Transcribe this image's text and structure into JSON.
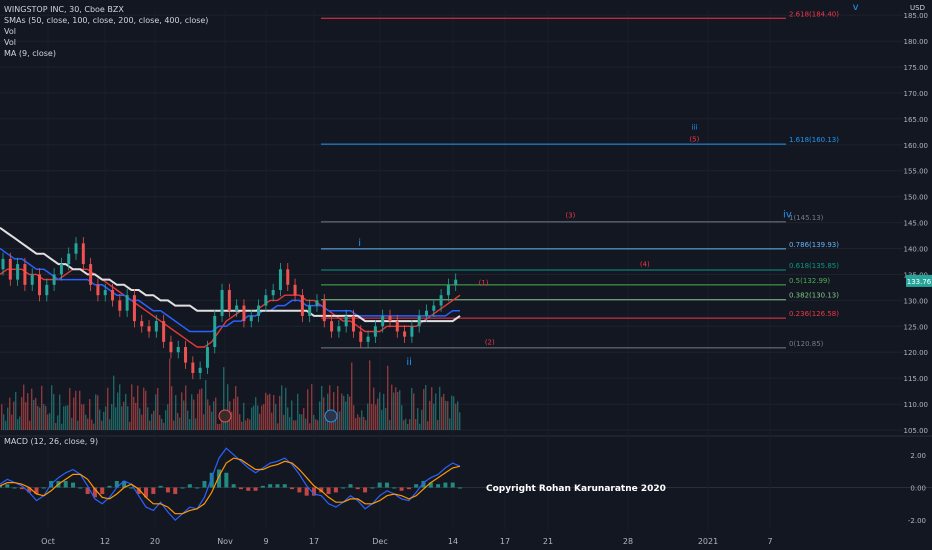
{
  "header": {
    "symbol_line": "WINGSTOP INC, 30, Cboe BZX",
    "indicators": [
      "SMAs (50, close, 100, close, 200, close, 400, close)",
      "Vol",
      "Vol",
      "MA (9, close)"
    ],
    "macd_label": "MACD (12, 26, close, 9)",
    "currency": "USD"
  },
  "copyright": "Copyright Rohan Karunaratne 2020",
  "chart_data": {
    "type": "line",
    "x_tick_labels": [
      "Oct",
      "12",
      "20",
      "Nov",
      "9",
      "17",
      "Dec",
      "14",
      "17",
      "21",
      "28",
      "2021",
      "7"
    ],
    "price_axis": {
      "ylim": [
        105,
        186
      ],
      "ticks": [
        105.0,
        110.0,
        115.0,
        120.0,
        125.0,
        130.0,
        135.0,
        140.0,
        145.0,
        150.0,
        155.0,
        160.0,
        165.0,
        170.0,
        175.0,
        180.0,
        185.0
      ],
      "last_price": "133.76"
    },
    "macd_axis": {
      "ylim": [
        -2.6,
        2.6
      ],
      "ticks": [
        2.0,
        0.0,
        -2.0
      ]
    },
    "price_series": [
      {
        "name": "price",
        "values": [
          136,
          138,
          134,
          137,
          133,
          135,
          131,
          133,
          135,
          137,
          139,
          141,
          137,
          133,
          131,
          132,
          130,
          128,
          131,
          126,
          125,
          124,
          126,
          122,
          120,
          121,
          118,
          116,
          117,
          121,
          127,
          132,
          128,
          129,
          126,
          127,
          129,
          131,
          132,
          136,
          133,
          131,
          127,
          129,
          130,
          126,
          124,
          125,
          127,
          124,
          122,
          123,
          125,
          127,
          126,
          124,
          123,
          125,
          127,
          128,
          129,
          131,
          133,
          134
        ]
      },
      {
        "name": "sma-1",
        "values": [
          135,
          136,
          136,
          136,
          135,
          135,
          134,
          134,
          134,
          135,
          136,
          136,
          136,
          135,
          134,
          133,
          132,
          131,
          130,
          129,
          128,
          127,
          126,
          125,
          124,
          123,
          122,
          121,
          121,
          122,
          124,
          126,
          127,
          128,
          128,
          128,
          129,
          130,
          130,
          131,
          131,
          131,
          130,
          130,
          129,
          128,
          127,
          126,
          126,
          125,
          124,
          124,
          124,
          125,
          125,
          125,
          125,
          125,
          126,
          127,
          128,
          129,
          130,
          131
        ]
      },
      {
        "name": "sma-2",
        "values": [
          140,
          139,
          138,
          138,
          137,
          136,
          136,
          135,
          134,
          134,
          134,
          134,
          134,
          133,
          133,
          132,
          131,
          131,
          130,
          130,
          129,
          128,
          128,
          127,
          126,
          125,
          124,
          124,
          124,
          124,
          125,
          125,
          126,
          126,
          127,
          127,
          128,
          128,
          129,
          129,
          130,
          130,
          129,
          129,
          129,
          128,
          128,
          128,
          128,
          127,
          127,
          127,
          127,
          127,
          127,
          127,
          127,
          127,
          127,
          127,
          127,
          127,
          128,
          128
        ]
      },
      {
        "name": "sma-3",
        "values": [
          144,
          143,
          142,
          141,
          140,
          139,
          139,
          138,
          137,
          137,
          136,
          136,
          135,
          135,
          134,
          134,
          133,
          133,
          132,
          132,
          131,
          131,
          130,
          130,
          129,
          129,
          129,
          128,
          128,
          128,
          128,
          128,
          128,
          128,
          128,
          128,
          128,
          128,
          128,
          128,
          128,
          128,
          128,
          127,
          127,
          127,
          127,
          127,
          127,
          127,
          126,
          126,
          126,
          126,
          126,
          126,
          126,
          126,
          126,
          126,
          126,
          126,
          126,
          127
        ]
      }
    ],
    "fib_levels": [
      {
        "label": "0(120.85)",
        "value": 120.85,
        "color": "#787b86"
      },
      {
        "label": "0.236(126.58)",
        "value": 126.58,
        "color": "#f23645"
      },
      {
        "label": "0.382(130.13)",
        "value": 130.13,
        "color": "#81c784"
      },
      {
        "label": "0.5(132.99)",
        "value": 132.99,
        "color": "#4caf50"
      },
      {
        "label": "0.618(135.85)",
        "value": 135.85,
        "color": "#089981"
      },
      {
        "label": "0.786(139.93)",
        "value": 139.93,
        "color": "#64b5f6"
      },
      {
        "label": "1(145.13)",
        "value": 145.13,
        "color": "#787b86"
      },
      {
        "label": "1.618(160.13)",
        "value": 160.13,
        "color": "#2196f3"
      },
      {
        "label": "2.618(184.40)",
        "value": 184.4,
        "color": "#f23645"
      }
    ],
    "wave_labels": [
      {
        "text": "v",
        "color": "#2196f3",
        "x_index": 138,
        "price": 186
      },
      {
        "text": "iii",
        "color": "#2196f3",
        "x_index": 112,
        "price": 163
      },
      {
        "text": "(5)",
        "color": "#f23645",
        "x_index": 112,
        "price": 160.6
      },
      {
        "text": "(3)",
        "color": "#f23645",
        "x_index": 92,
        "price": 146
      },
      {
        "text": "iv",
        "color": "#2196f3",
        "x_index": 127,
        "price": 146
      },
      {
        "text": "i",
        "color": "#2196f3",
        "x_index": 58,
        "price": 140.5
      },
      {
        "text": "(4)",
        "color": "#f23645",
        "x_index": 104,
        "price": 136.5
      },
      {
        "text": "(1)",
        "color": "#f23645",
        "x_index": 78,
        "price": 133
      },
      {
        "text": "(2)",
        "color": "#f23645",
        "x_index": 79,
        "price": 121.5
      },
      {
        "text": "ii",
        "color": "#2196f3",
        "x_index": 66,
        "price": 117.5
      }
    ],
    "macd": {
      "macd_line": [
        0.2,
        0.5,
        0.3,
        0.1,
        -0.3,
        -0.8,
        -0.5,
        0.2,
        0.6,
        0.9,
        1.1,
        0.8,
        0.1,
        -0.7,
        -1.0,
        -0.6,
        0.0,
        0.4,
        0.2,
        -0.5,
        -1.2,
        -1.4,
        -0.9,
        -1.5,
        -2.0,
        -1.6,
        -1.2,
        -1.3,
        -0.6,
        0.6,
        1.8,
        2.4,
        2.0,
        1.6,
        1.2,
        0.9,
        1.2,
        1.5,
        1.6,
        1.8,
        1.4,
        0.8,
        0.1,
        -0.4,
        -0.5,
        -1.0,
        -1.2,
        -0.9,
        -0.5,
        -0.8,
        -1.3,
        -1.0,
        -0.5,
        -0.2,
        -0.4,
        -0.7,
        -0.8,
        -0.3,
        0.3,
        0.6,
        0.8,
        1.2,
        1.5,
        1.3
      ],
      "signal_line": [
        0.1,
        0.3,
        0.3,
        0.2,
        0.0,
        -0.4,
        -0.5,
        -0.2,
        0.2,
        0.5,
        0.8,
        0.8,
        0.5,
        -0.1,
        -0.6,
        -0.7,
        -0.4,
        0.0,
        0.2,
        -0.1,
        -0.6,
        -1.0,
        -1.0,
        -1.2,
        -1.6,
        -1.6,
        -1.4,
        -1.3,
        -1.0,
        -0.3,
        0.7,
        1.5,
        1.8,
        1.7,
        1.4,
        1.1,
        1.1,
        1.3,
        1.4,
        1.6,
        1.5,
        1.1,
        0.6,
        0.1,
        -0.2,
        -0.6,
        -0.9,
        -0.9,
        -0.7,
        -0.7,
        -1.0,
        -1.0,
        -0.8,
        -0.5,
        -0.4,
        -0.5,
        -0.7,
        -0.5,
        -0.1,
        0.3,
        0.6,
        0.9,
        1.2,
        1.3
      ]
    }
  }
}
